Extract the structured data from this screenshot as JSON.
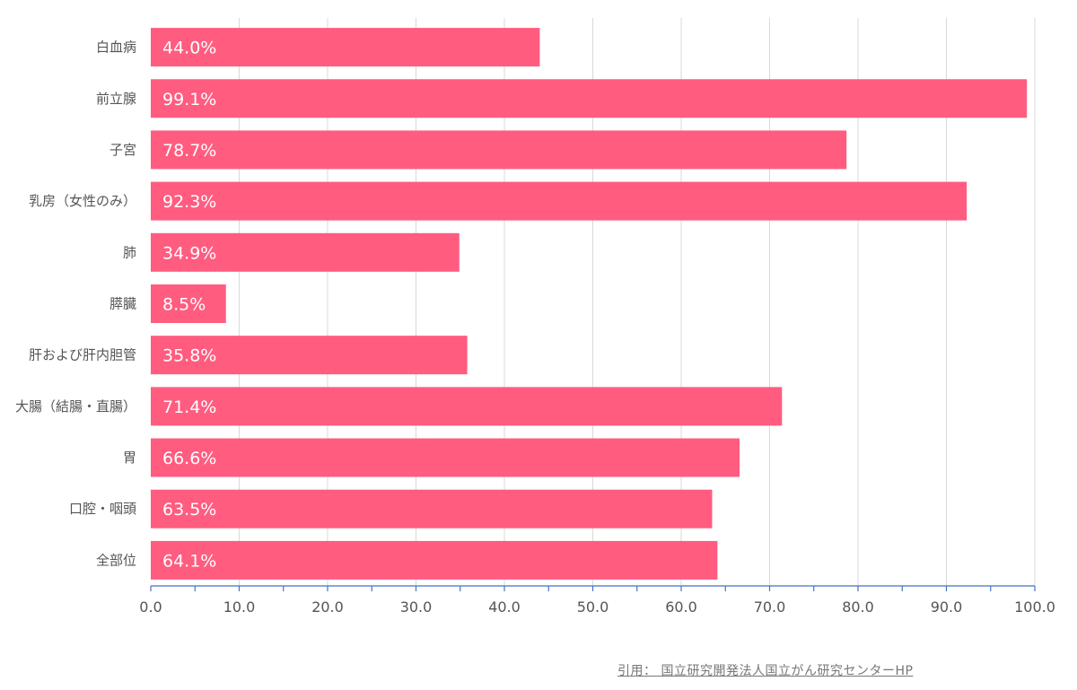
{
  "chart_data": {
    "type": "bar",
    "orientation": "horizontal",
    "categories": [
      "白血病",
      "前立腺",
      "子宮",
      "乳房（女性のみ）",
      "肺",
      "膵臓",
      "肝および肝内胆管",
      "大腸（結腸・直腸）",
      "胃",
      "口腔・咽頭",
      "全部位"
    ],
    "values": [
      44.0,
      99.1,
      78.7,
      92.3,
      34.9,
      8.5,
      35.8,
      71.4,
      66.6,
      63.5,
      64.1
    ],
    "value_labels": [
      "44.0%",
      "99.1%",
      "78.7%",
      "92.3%",
      "34.9%",
      "8.5%",
      "35.8%",
      "71.4%",
      "66.6%",
      "63.5%",
      "64.1%"
    ],
    "xlim": [
      0,
      100
    ],
    "x_ticks": [
      0,
      10,
      20,
      30,
      40,
      50,
      60,
      70,
      80,
      90,
      100
    ],
    "x_tick_labels": [
      "0.0",
      "10.0",
      "20.0",
      "30.0",
      "40.0",
      "50.0",
      "60.0",
      "70.0",
      "80.0",
      "90.0",
      "100.0"
    ],
    "grid": true,
    "title": "",
    "xlabel": "",
    "ylabel": ""
  },
  "source_note": "引用： 国立研究開発法人国立がん研究センターHP",
  "colors": {
    "bar": "#ff5c80",
    "grid": "#d9d9d9",
    "axis": "#4472c4",
    "text": "#555555",
    "bar_label": "#ffffff"
  }
}
